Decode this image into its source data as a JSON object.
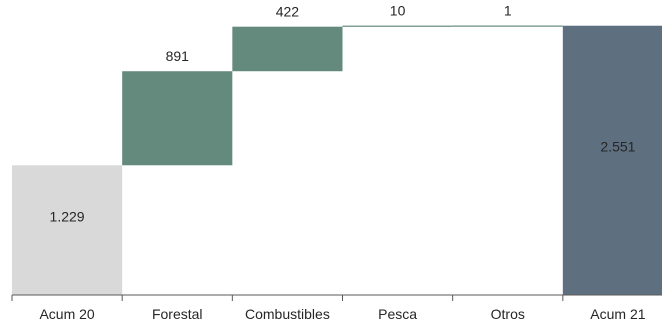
{
  "chart_data": {
    "type": "waterfall",
    "categories": [
      "Acum 20",
      "Forestal",
      "Combustibles",
      "Pesca",
      "Otros",
      "Acum 21"
    ],
    "values": [
      1229,
      891,
      422,
      10,
      1,
      2551
    ],
    "labels": [
      "1.229",
      "891",
      "422",
      "10",
      "1",
      "2.551"
    ],
    "kinds": [
      "total",
      "delta",
      "delta",
      "delta",
      "delta",
      "total"
    ],
    "ylim": [
      0,
      2700
    ],
    "grid": false,
    "colors": {
      "start_total": "#d9d9d9",
      "increase": "#648a7e",
      "end_total": "#5e6f7f",
      "axis": "#595959",
      "text": "#262626",
      "end_label": "#ffffff"
    }
  }
}
